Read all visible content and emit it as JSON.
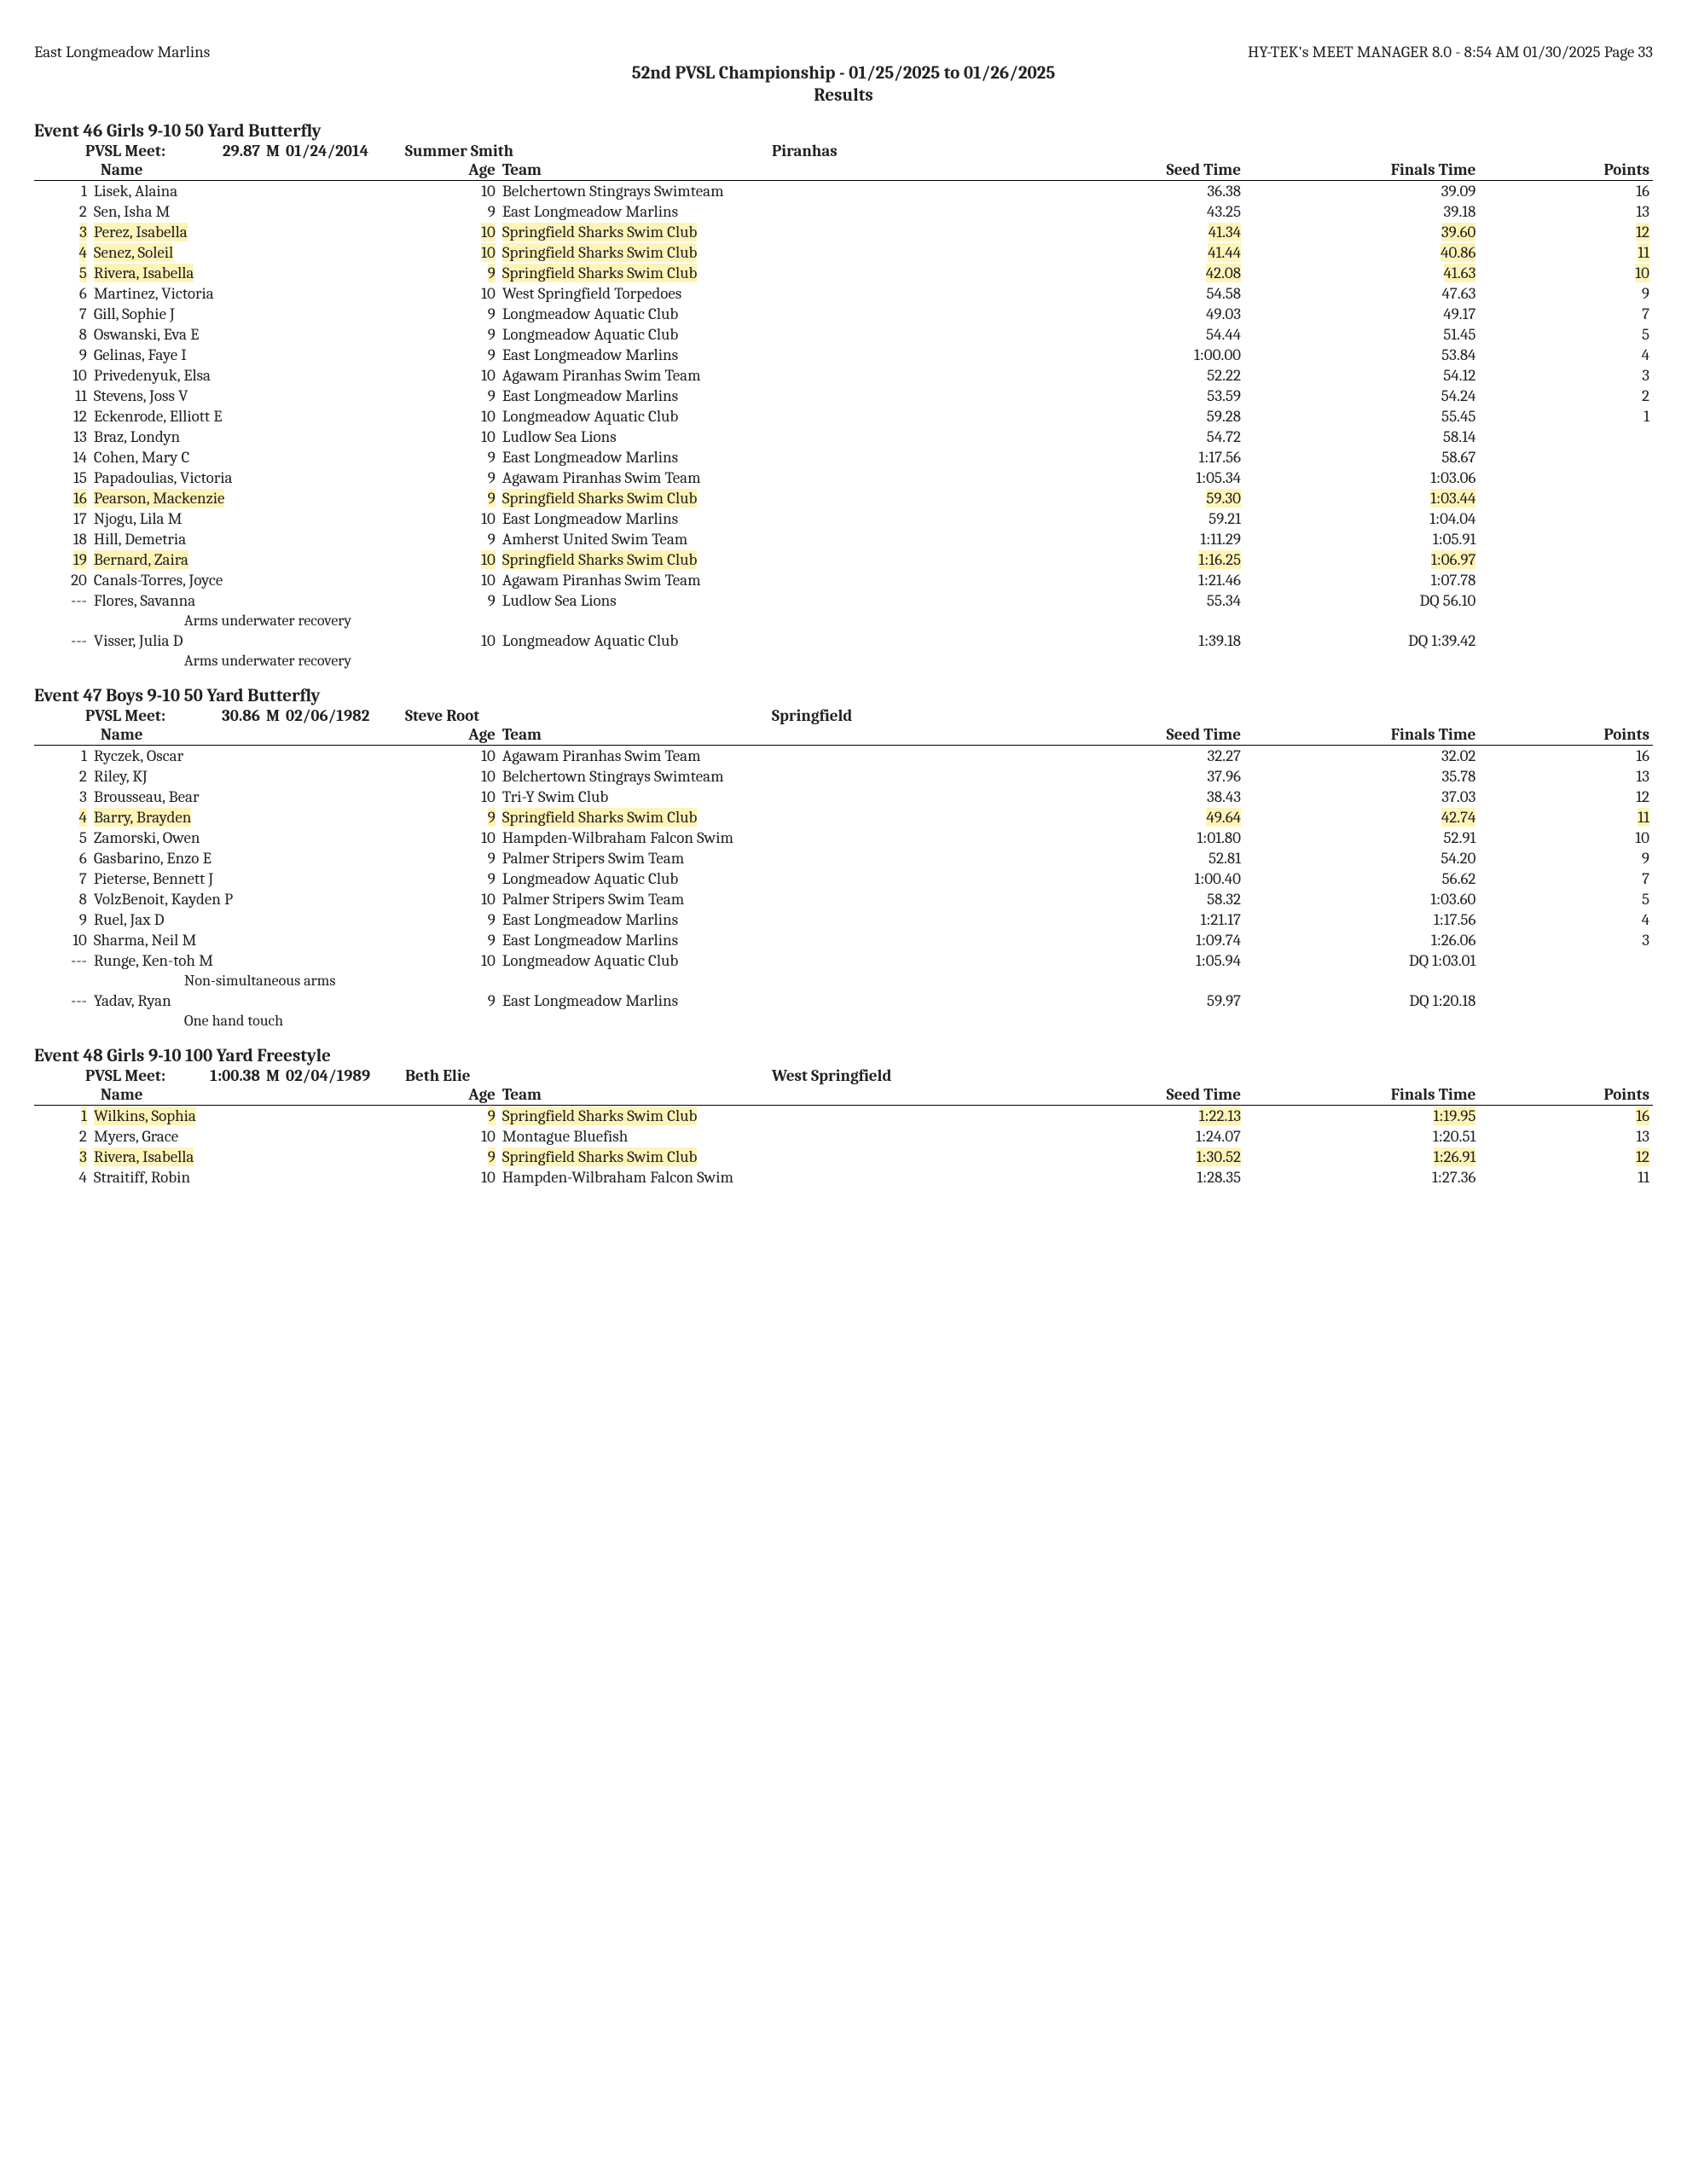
{
  "header": {
    "left": "East Longmeadow Marlins",
    "right": "HY-TEK's MEET MANAGER 8.0 - 8:54 AM  01/30/2025  Page 33",
    "title_line1": "52nd PVSL Championship - 01/25/2025 to 01/26/2025",
    "title_line2": "Results"
  },
  "highlight_color": "#fff4b8",
  "columns": {
    "name": "Name",
    "age": "Age",
    "team": "Team",
    "seed": "Seed Time",
    "finals": "Finals Time",
    "points": "Points"
  },
  "events": [
    {
      "title": "Event 46  Girls 9-10 50 Yard Butterfly",
      "record": {
        "label": "PVSL Meet:",
        "time": "29.87",
        "m": "M",
        "date": "01/24/2014",
        "name": "Summer Smith",
        "team": "Piranhas"
      },
      "rows": [
        {
          "place": "1",
          "name": "Lisek, Alaina",
          "age": "10",
          "team": "Belchertown Stingrays Swimteam",
          "seed": "36.38",
          "finals": "39.09",
          "points": "16"
        },
        {
          "place": "2",
          "name": "Sen, Isha M",
          "age": "9",
          "team": "East Longmeadow Marlins",
          "seed": "43.25",
          "finals": "39.18",
          "points": "13"
        },
        {
          "place": "3",
          "name": "Perez, Isabella",
          "age": "10",
          "team": "Springfield Sharks Swim Club",
          "seed": "41.34",
          "finals": "39.60",
          "points": "12",
          "hl": true
        },
        {
          "place": "4",
          "name": "Senez, Soleil",
          "age": "10",
          "team": "Springfield Sharks Swim Club",
          "seed": "41.44",
          "finals": "40.86",
          "points": "11",
          "hl": true
        },
        {
          "place": "5",
          "name": "Rivera, Isabella",
          "age": "9",
          "team": "Springfield Sharks Swim Club",
          "seed": "42.08",
          "finals": "41.63",
          "points": "10",
          "hl": true
        },
        {
          "place": "6",
          "name": "Martinez, Victoria",
          "age": "10",
          "team": "West Springfield Torpedoes",
          "seed": "54.58",
          "finals": "47.63",
          "points": "9"
        },
        {
          "place": "7",
          "name": "Gill, Sophie J",
          "age": "9",
          "team": "Longmeadow Aquatic Club",
          "seed": "49.03",
          "finals": "49.17",
          "points": "7"
        },
        {
          "place": "8",
          "name": "Oswanski, Eva E",
          "age": "9",
          "team": "Longmeadow Aquatic Club",
          "seed": "54.44",
          "finals": "51.45",
          "points": "5"
        },
        {
          "place": "9",
          "name": "Gelinas, Faye I",
          "age": "9",
          "team": "East Longmeadow Marlins",
          "seed": "1:00.00",
          "finals": "53.84",
          "points": "4"
        },
        {
          "place": "10",
          "name": "Privedenyuk, Elsa",
          "age": "10",
          "team": "Agawam Piranhas Swim Team",
          "seed": "52.22",
          "finals": "54.12",
          "points": "3"
        },
        {
          "place": "11",
          "name": "Stevens, Joss V",
          "age": "9",
          "team": "East Longmeadow Marlins",
          "seed": "53.59",
          "finals": "54.24",
          "points": "2"
        },
        {
          "place": "12",
          "name": "Eckenrode, Elliott E",
          "age": "10",
          "team": "Longmeadow Aquatic Club",
          "seed": "59.28",
          "finals": "55.45",
          "points": "1"
        },
        {
          "place": "13",
          "name": "Braz, Londyn",
          "age": "10",
          "team": "Ludlow Sea Lions",
          "seed": "54.72",
          "finals": "58.14",
          "points": ""
        },
        {
          "place": "14",
          "name": "Cohen, Mary C",
          "age": "9",
          "team": "East Longmeadow Marlins",
          "seed": "1:17.56",
          "finals": "58.67",
          "points": ""
        },
        {
          "place": "15",
          "name": "Papadoulias, Victoria",
          "age": "9",
          "team": "Agawam Piranhas Swim Team",
          "seed": "1:05.34",
          "finals": "1:03.06",
          "points": ""
        },
        {
          "place": "16",
          "name": "Pearson, Mackenzie",
          "age": "9",
          "team": "Springfield Sharks Swim Club",
          "seed": "59.30",
          "finals": "1:03.44",
          "points": "",
          "hl": true
        },
        {
          "place": "17",
          "name": "Njogu, Lila M",
          "age": "10",
          "team": "East Longmeadow Marlins",
          "seed": "59.21",
          "finals": "1:04.04",
          "points": ""
        },
        {
          "place": "18",
          "name": "Hill, Demetria",
          "age": "9",
          "team": "Amherst United Swim Team",
          "seed": "1:11.29",
          "finals": "1:05.91",
          "points": ""
        },
        {
          "place": "19",
          "name": "Bernard, Zaira",
          "age": "10",
          "team": "Springfield Sharks Swim Club",
          "seed": "1:16.25",
          "finals": "1:06.97",
          "points": "",
          "hl": true
        },
        {
          "place": "20",
          "name": "Canals-Torres, Joyce",
          "age": "10",
          "team": "Agawam Piranhas Swim Team",
          "seed": "1:21.46",
          "finals": "1:07.78",
          "points": ""
        },
        {
          "place": "---",
          "name": "Flores, Savanna",
          "age": "9",
          "team": "Ludlow Sea Lions",
          "seed": "55.34",
          "finals": "DQ 56.10",
          "points": "",
          "note": "Arms underwater recovery"
        },
        {
          "place": "---",
          "name": "Visser, Julia D",
          "age": "10",
          "team": "Longmeadow Aquatic Club",
          "seed": "1:39.18",
          "finals": "DQ 1:39.42",
          "points": "",
          "note": "Arms underwater recovery"
        }
      ]
    },
    {
      "title": "Event 47  Boys 9-10 50 Yard Butterfly",
      "record": {
        "label": "PVSL Meet:",
        "time": "30.86",
        "m": "M",
        "date": "02/06/1982",
        "name": "Steve Root",
        "team": "Springfield"
      },
      "rows": [
        {
          "place": "1",
          "name": "Ryczek, Oscar",
          "age": "10",
          "team": "Agawam Piranhas Swim Team",
          "seed": "32.27",
          "finals": "32.02",
          "points": "16"
        },
        {
          "place": "2",
          "name": "Riley, KJ",
          "age": "10",
          "team": "Belchertown Stingrays Swimteam",
          "seed": "37.96",
          "finals": "35.78",
          "points": "13"
        },
        {
          "place": "3",
          "name": "Brousseau, Bear",
          "age": "10",
          "team": "Tri-Y Swim Club",
          "seed": "38.43",
          "finals": "37.03",
          "points": "12"
        },
        {
          "place": "4",
          "name": "Barry, Brayden",
          "age": "9",
          "team": "Springfield Sharks Swim Club",
          "seed": "49.64",
          "finals": "42.74",
          "points": "11",
          "hl": true
        },
        {
          "place": "5",
          "name": "Zamorski, Owen",
          "age": "10",
          "team": "Hampden-Wilbraham Falcon Swim",
          "seed": "1:01.80",
          "finals": "52.91",
          "points": "10"
        },
        {
          "place": "6",
          "name": "Gasbarino, Enzo E",
          "age": "9",
          "team": "Palmer Stripers Swim Team",
          "seed": "52.81",
          "finals": "54.20",
          "points": "9"
        },
        {
          "place": "7",
          "name": "Pieterse, Bennett J",
          "age": "9",
          "team": "Longmeadow Aquatic Club",
          "seed": "1:00.40",
          "finals": "56.62",
          "points": "7"
        },
        {
          "place": "8",
          "name": "VolzBenoit, Kayden P",
          "age": "10",
          "team": "Palmer Stripers Swim Team",
          "seed": "58.32",
          "finals": "1:03.60",
          "points": "5"
        },
        {
          "place": "9",
          "name": "Ruel, Jax D",
          "age": "9",
          "team": "East Longmeadow Marlins",
          "seed": "1:21.17",
          "finals": "1:17.56",
          "points": "4"
        },
        {
          "place": "10",
          "name": "Sharma, Neil M",
          "age": "9",
          "team": "East Longmeadow Marlins",
          "seed": "1:09.74",
          "finals": "1:26.06",
          "points": "3"
        },
        {
          "place": "---",
          "name": "Runge, Ken-toh M",
          "age": "10",
          "team": "Longmeadow Aquatic Club",
          "seed": "1:05.94",
          "finals": "DQ 1:03.01",
          "points": "",
          "note": "Non-simultaneous arms"
        },
        {
          "place": "---",
          "name": "Yadav, Ryan",
          "age": "9",
          "team": "East Longmeadow Marlins",
          "seed": "59.97",
          "finals": "DQ 1:20.18",
          "points": "",
          "note": "One hand touch"
        }
      ]
    },
    {
      "title": "Event 48  Girls 9-10 100 Yard Freestyle",
      "record": {
        "label": "PVSL Meet:",
        "time": "1:00.38",
        "m": "M",
        "date": "02/04/1989",
        "name": "Beth Elie",
        "team": "West Springfield"
      },
      "rows": [
        {
          "place": "1",
          "name": "Wilkins, Sophia",
          "age": "9",
          "team": "Springfield Sharks Swim Club",
          "seed": "1:22.13",
          "finals": "1:19.95",
          "points": "16",
          "hl": true
        },
        {
          "place": "2",
          "name": "Myers, Grace",
          "age": "10",
          "team": "Montague Bluefish",
          "seed": "1:24.07",
          "finals": "1:20.51",
          "points": "13"
        },
        {
          "place": "3",
          "name": "Rivera, Isabella",
          "age": "9",
          "team": "Springfield Sharks Swim Club",
          "seed": "1:30.52",
          "finals": "1:26.91",
          "points": "12",
          "hl": true
        },
        {
          "place": "4",
          "name": "Straitiff, Robin",
          "age": "10",
          "team": "Hampden-Wilbraham Falcon Swim",
          "seed": "1:28.35",
          "finals": "1:27.36",
          "points": "11"
        }
      ]
    }
  ]
}
